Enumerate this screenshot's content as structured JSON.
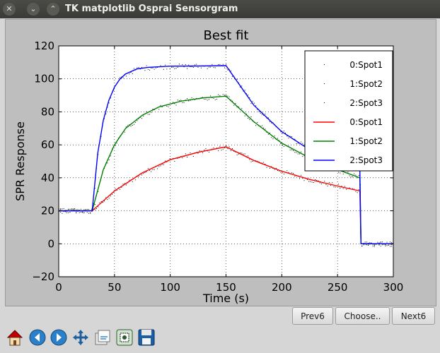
{
  "window": {
    "title": "TK matplotlib Osprai Sensorgram"
  },
  "titlebar_buttons": {
    "close": "✕",
    "minimize": "⌄",
    "maximize": "⌃"
  },
  "buttons": {
    "prev": "Prev6",
    "choose": "Choose..",
    "next": "Next6"
  },
  "toolbar": [
    "home",
    "back",
    "forward",
    "pan",
    "configure",
    "zoom",
    "save"
  ],
  "chart_data": {
    "type": "line",
    "title": "Best fit",
    "xlabel": "Time (s)",
    "ylabel": "SPR Response",
    "xlim": [
      0,
      300
    ],
    "ylim": [
      -20,
      120
    ],
    "xticks": [
      0,
      50,
      100,
      150,
      200,
      250,
      300
    ],
    "yticks": [
      -20,
      0,
      20,
      40,
      60,
      80,
      100,
      120
    ],
    "grid": true,
    "legend_position": "top-right",
    "legend": [
      {
        "label": "0:Spot1",
        "style": "dots"
      },
      {
        "label": "1:Spot2",
        "style": "dots"
      },
      {
        "label": "2:Spot3",
        "style": "dots"
      },
      {
        "label": "0:Spot1",
        "style": "line",
        "color": "#ff0000"
      },
      {
        "label": "1:Spot2",
        "style": "line",
        "color": "#008000"
      },
      {
        "label": "2:Spot3",
        "style": "line",
        "color": "#0000ff"
      }
    ],
    "series": [
      {
        "name": "0:Spot1",
        "color": "#ff0000",
        "x": [
          0,
          30,
          50,
          75,
          100,
          125,
          150,
          175,
          200,
          225,
          250,
          270,
          271,
          300
        ],
        "y": [
          20,
          20,
          32,
          43,
          51,
          55.5,
          58.8,
          50.5,
          44,
          39,
          35,
          32,
          0,
          0
        ]
      },
      {
        "name": "1:Spot2",
        "color": "#008000",
        "x": [
          0,
          30,
          40,
          50,
          60,
          75,
          90,
          110,
          130,
          150,
          175,
          200,
          225,
          250,
          270,
          271,
          300
        ],
        "y": [
          20,
          20,
          45,
          60,
          70,
          78,
          83,
          86.5,
          88.5,
          89.5,
          74,
          61,
          52,
          45,
          40,
          0,
          0
        ]
      },
      {
        "name": "2:Spot3",
        "color": "#0000ff",
        "x": [
          0,
          30,
          35,
          40,
          45,
          50,
          55,
          60,
          70,
          80,
          100,
          125,
          150,
          175,
          200,
          225,
          250,
          270,
          271,
          300
        ],
        "y": [
          20,
          20,
          55,
          75,
          87,
          95,
          100,
          103,
          106,
          107,
          107.7,
          107.8,
          108,
          84,
          68,
          57,
          50,
          45,
          0,
          0
        ]
      }
    ]
  }
}
